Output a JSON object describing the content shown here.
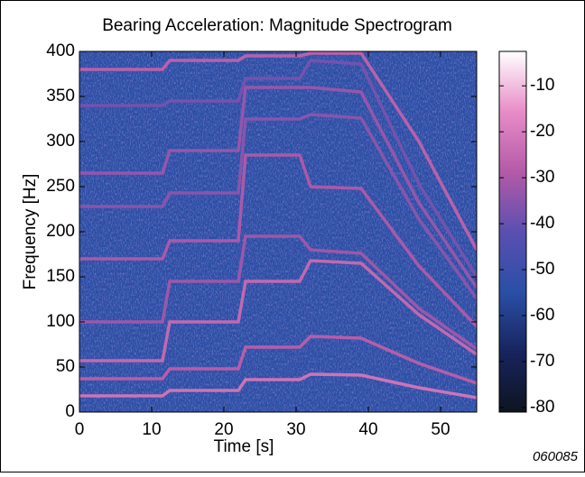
{
  "chart_data": {
    "type": "spectrogram",
    "title": "Bearing Acceleration: Magnitude Spectrogram",
    "xlabel": "Time [s]",
    "ylabel": "Frequency [Hz]",
    "figure_code": "060085",
    "xlim": [
      0,
      55
    ],
    "xticks": [
      0,
      10,
      20,
      30,
      40,
      50
    ],
    "ylim": [
      0,
      400
    ],
    "yticks": [
      0,
      50,
      100,
      150,
      200,
      250,
      300,
      350,
      400
    ],
    "clim": [
      -81,
      -2.5
    ],
    "cticks": [
      -80,
      -70,
      -60,
      -50,
      -40,
      -30,
      -20,
      -10
    ],
    "colormap": [
      "#0e1420",
      "#17245e",
      "#2a4fa6",
      "#5a4fb0",
      "#b45aa8",
      "#e88cc8",
      "#ffffff"
    ],
    "background_level": -55,
    "x": [
      0,
      11.5,
      12.5,
      22,
      23,
      30.5,
      32,
      39,
      47,
      55
    ],
    "bands": [
      {
        "level": -22,
        "values": [
          18,
          18,
          24,
          24,
          36,
          36,
          42,
          41,
          27,
          16
        ]
      },
      {
        "level": -28,
        "values": [
          37,
          37,
          48,
          48,
          72,
          72,
          84,
          82,
          54,
          32
        ]
      },
      {
        "level": -25,
        "values": [
          57,
          57,
          100,
          100,
          145,
          145,
          168,
          165,
          108,
          64
        ]
      },
      {
        "level": -32,
        "values": [
          100,
          100,
          145,
          145,
          195,
          195,
          180,
          176,
          115,
          70
        ]
      },
      {
        "level": -30,
        "values": [
          170,
          170,
          190,
          190,
          285,
          285,
          250,
          248,
          162,
          95
        ]
      },
      {
        "level": -35,
        "values": [
          228,
          228,
          243,
          243,
          325,
          325,
          330,
          326,
          214,
          126
        ]
      },
      {
        "level": -33,
        "values": [
          265,
          265,
          290,
          290,
          360,
          360,
          360,
          355,
          232,
          138
        ]
      },
      {
        "level": -38,
        "values": [
          340,
          340,
          345,
          345,
          370,
          370,
          390,
          386,
          253,
          150
        ]
      },
      {
        "level": -27,
        "values": [
          380,
          380,
          390,
          390,
          395,
          395,
          398,
          398,
          300,
          180
        ]
      }
    ]
  }
}
